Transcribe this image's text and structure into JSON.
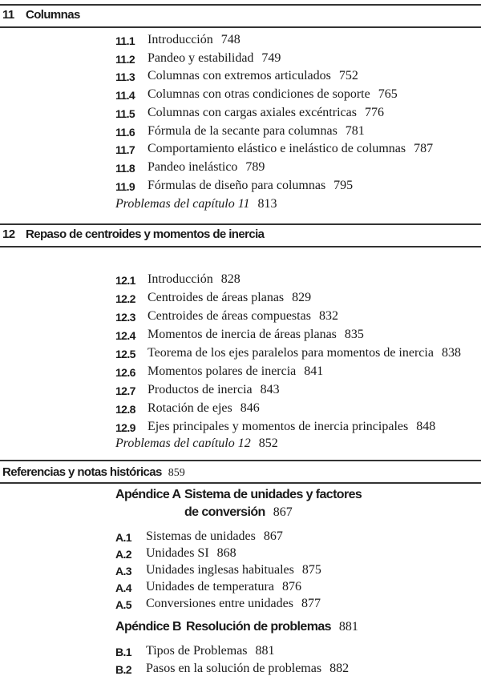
{
  "chapter11": {
    "number": "11",
    "title": "Columnas",
    "sections": [
      {
        "num": "11.1",
        "title": "Introducción",
        "page": "748"
      },
      {
        "num": "11.2",
        "title": "Pandeo y estabilidad",
        "page": "749"
      },
      {
        "num": "11.3",
        "title": "Columnas con extremos articulados",
        "page": "752"
      },
      {
        "num": "11.4",
        "title": "Columnas con otras condiciones de soporte",
        "page": "765"
      },
      {
        "num": "11.5",
        "title": "Columnas con cargas axiales excéntricas",
        "page": "776"
      },
      {
        "num": "11.6",
        "title": "Fórmula de la secante para columnas",
        "page": "781"
      },
      {
        "num": "11.7",
        "title": "Comportamiento elástico e inelástico de columnas",
        "page": "787"
      },
      {
        "num": "11.8",
        "title": "Pandeo inelástico",
        "page": "789"
      },
      {
        "num": "11.9",
        "title": "Fórmulas de diseño para columnas",
        "page": "795"
      }
    ],
    "problems": {
      "label": "Problemas del capítulo 11",
      "page": "813"
    }
  },
  "chapter12": {
    "number": "12",
    "title": "Repaso de centroides y momentos de inercia",
    "sections": [
      {
        "num": "12.1",
        "title": "Introducción",
        "page": "828"
      },
      {
        "num": "12.2",
        "title": "Centroides de áreas planas",
        "page": "829"
      },
      {
        "num": "12.3",
        "title": "Centroides de áreas compuestas",
        "page": "832"
      },
      {
        "num": "12.4",
        "title": "Momentos de inercia de áreas planas",
        "page": "835"
      },
      {
        "num": "12.5",
        "title": "Teorema de los ejes paralelos para momentos de inercia",
        "page": "838"
      },
      {
        "num": "12.6",
        "title": "Momentos polares de inercia",
        "page": "841"
      },
      {
        "num": "12.7",
        "title": "Productos de inercia",
        "page": "843"
      },
      {
        "num": "12.8",
        "title": "Rotación de ejes",
        "page": "846"
      },
      {
        "num": "12.9",
        "title": "Ejes principales y momentos de inercia principales",
        "page": "848"
      }
    ],
    "problems": {
      "label": "Problemas del capítulo 12",
      "page": "852"
    }
  },
  "references": {
    "title": "Referencias y notas históricas",
    "page": "859"
  },
  "appendixA": {
    "label": "Apéndice A",
    "title_line1": "Sistema de unidades y factores",
    "title_line2": "de conversión",
    "page": "867",
    "sections": [
      {
        "num": "A.1",
        "title": "Sistemas de unidades",
        "page": "867"
      },
      {
        "num": "A.2",
        "title": "Unidades SI",
        "page": "868"
      },
      {
        "num": "A.3",
        "title": "Unidades inglesas habituales",
        "page": "875"
      },
      {
        "num": "A.4",
        "title": "Unidades de temperatura",
        "page": "876"
      },
      {
        "num": "A.5",
        "title": "Conversiones entre unidades",
        "page": "877"
      }
    ]
  },
  "appendixB": {
    "label": "Apéndice B",
    "title": "Resolución de problemas",
    "page": "881",
    "sections": [
      {
        "num": "B.1",
        "title": "Tipos de Problemas",
        "page": "881"
      },
      {
        "num": "B.2",
        "title": "Pasos en la solución de problemas",
        "page": "882"
      }
    ]
  }
}
